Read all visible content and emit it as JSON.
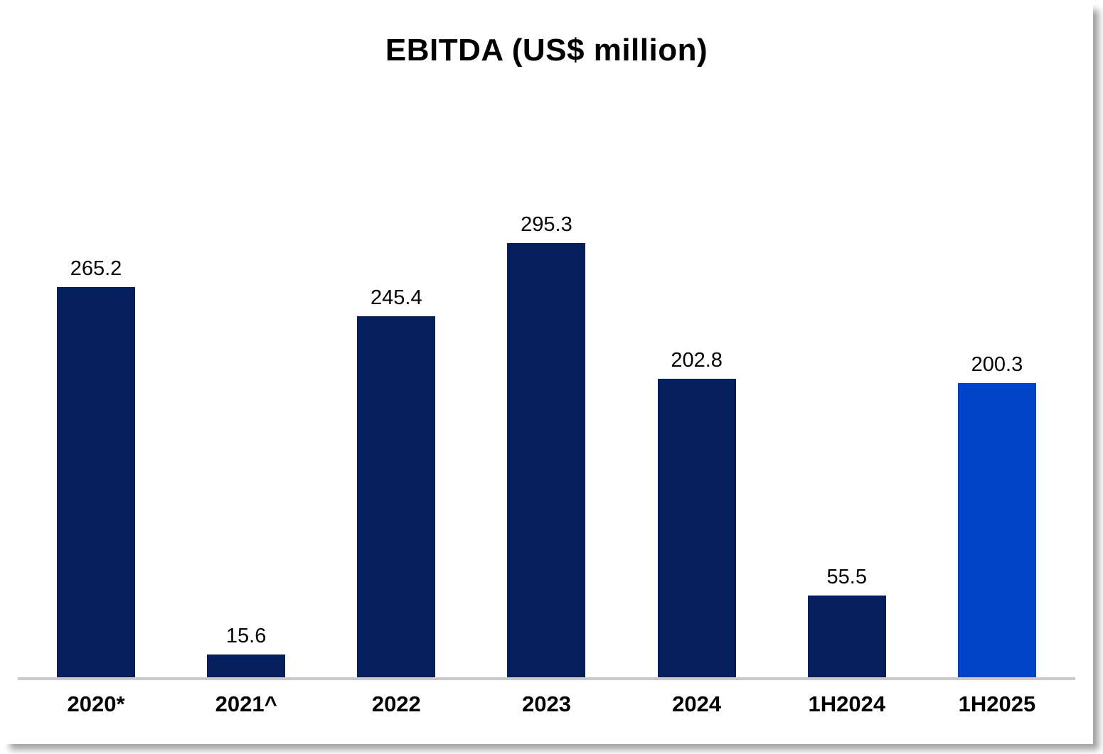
{
  "page": {
    "title": "EBITDA (US$ million)"
  },
  "chart_data": {
    "type": "bar",
    "title": "EBITDA (US$ million)",
    "categories": [
      "2020*",
      "2021^",
      "2022",
      "2023",
      "2024",
      "1H2024",
      "1H2025"
    ],
    "values": [
      265.2,
      15.6,
      245.4,
      295.3,
      202.8,
      55.5,
      200.3
    ],
    "value_labels": [
      "265.2",
      "15.6",
      "245.4",
      "295.3",
      "202.8",
      "55.5",
      "200.3"
    ],
    "bar_colors": [
      "#041F5B",
      "#041F5B",
      "#041F5B",
      "#041F5B",
      "#041F5B",
      "#041F5B",
      "#0244C7"
    ],
    "colors": {
      "primary_bar": "#041F5B",
      "highlight_bar": "#0244C7",
      "axis_line": "#C9C9C9",
      "text": "#000000"
    },
    "xlabel": "",
    "ylabel": "",
    "ylim": [
      0,
      400
    ],
    "grid": false,
    "legend": false,
    "data_labels": true
  }
}
